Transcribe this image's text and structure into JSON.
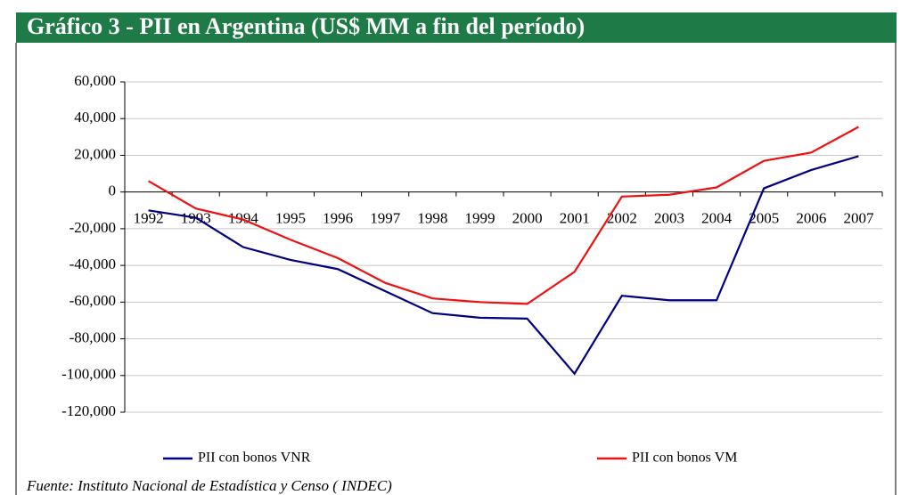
{
  "chart_data": {
    "type": "line",
    "title": "Gráfico 3 - PII en Argentina (US$ MM a fin del período)",
    "source": "Fuente: Instituto Nacional de Estadística y Censo ( INDEC)",
    "categories": [
      "1992",
      "1993",
      "1994",
      "1995",
      "1996",
      "1997",
      "1998",
      "1999",
      "2000",
      "2001",
      "2002",
      "2003",
      "2004",
      "2005",
      "2006",
      "2007"
    ],
    "series": [
      {
        "name": "PII con bonos VNR",
        "color": "#000080",
        "values": [
          -10000,
          -14000,
          -30000,
          -37000,
          -42000,
          -54000,
          -66000,
          -68500,
          -69000,
          -99000,
          -56500,
          -59000,
          -59000,
          2000,
          12000,
          19500
        ]
      },
      {
        "name": "PII con bonos VM",
        "color": "#ee1111",
        "values": [
          6000,
          -9000,
          -15000,
          -26000,
          -36000,
          -49500,
          -58000,
          -60000,
          -61000,
          -43500,
          -2500,
          -1500,
          2500,
          17000,
          21500,
          35500
        ]
      }
    ],
    "ylim": [
      -120000,
      60000
    ],
    "yticks": [
      {
        "value": -120000,
        "label": "-120,000"
      },
      {
        "value": -100000,
        "label": "-100,000"
      },
      {
        "value": -80000,
        "label": "-80,000"
      },
      {
        "value": -60000,
        "label": "-60,000"
      },
      {
        "value": -40000,
        "label": "-40,000"
      },
      {
        "value": -20000,
        "label": "-20,000"
      },
      0,
      {
        "value": 20000,
        "label": "20,000"
      },
      {
        "value": 40000,
        "label": "40,000"
      },
      {
        "value": 60000,
        "label": "60,000"
      }
    ],
    "grid": true
  }
}
